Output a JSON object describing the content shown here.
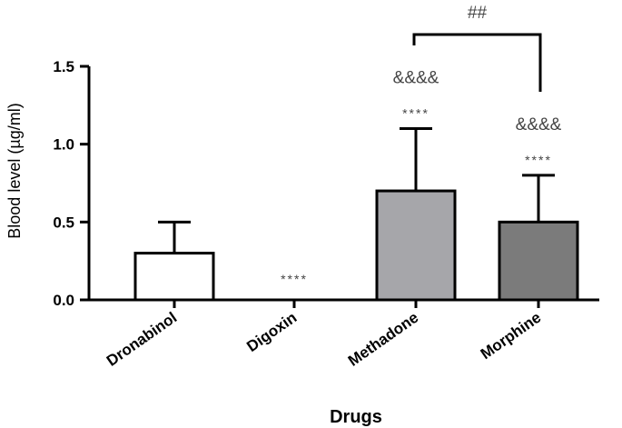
{
  "chart_data": {
    "type": "bar",
    "title": "",
    "xlabel": "Drugs",
    "ylabel": "Blood level (µg/ml)",
    "ylim": [
      0,
      1.5
    ],
    "yticks": [
      0.0,
      0.5,
      1.0,
      1.5
    ],
    "ytick_labels": [
      "0.0",
      "0.5",
      "1.0",
      "1.5"
    ],
    "categories": [
      "Dronabinol",
      "Digoxin",
      "Methadone",
      "Morphine"
    ],
    "values": [
      0.3,
      0.0,
      0.7,
      0.5
    ],
    "errors": [
      0.2,
      0.0,
      0.4,
      0.3
    ],
    "colors": [
      "#ffffff",
      "#ffffff",
      "#a6a6aa",
      "#7b7b7b"
    ],
    "annotations": [
      {
        "category": "Digoxin",
        "lines": [
          "****"
        ]
      },
      {
        "category": "Methadone",
        "lines": [
          "&&&&",
          "****"
        ]
      },
      {
        "category": "Morphine",
        "lines": [
          "&&&&",
          "****"
        ]
      }
    ],
    "bracket": {
      "from": "Methadone",
      "to": "Morphine",
      "label": "##"
    }
  }
}
